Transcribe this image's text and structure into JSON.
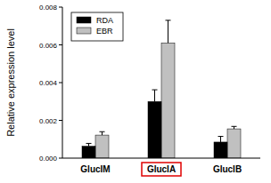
{
  "chart_data": {
    "type": "bar",
    "y_label": "Relative expression level",
    "categories": [
      "GlucIM",
      "GlucIA",
      "GlucIB"
    ],
    "series": [
      {
        "name": "RDA",
        "color": "#000000",
        "values": [
          0.00063,
          0.003,
          0.00085
        ],
        "errors": [
          0.00015,
          0.00062,
          0.0003
        ]
      },
      {
        "name": "EBR",
        "color": "#c0c0c0",
        "values": [
          0.00122,
          0.0061,
          0.00155
        ],
        "errors": [
          0.00018,
          0.0012,
          0.00013
        ]
      }
    ],
    "ylim": [
      0,
      0.008
    ],
    "yticks": [
      {
        "value": 0,
        "label": "0.000"
      },
      {
        "value": 0.002,
        "label": "0.002"
      },
      {
        "value": 0.004,
        "label": "0.004"
      },
      {
        "value": 0.006,
        "label": "0.006"
      },
      {
        "value": 0.008,
        "label": "0.008"
      }
    ],
    "legend": "upper left",
    "grid": false
  }
}
